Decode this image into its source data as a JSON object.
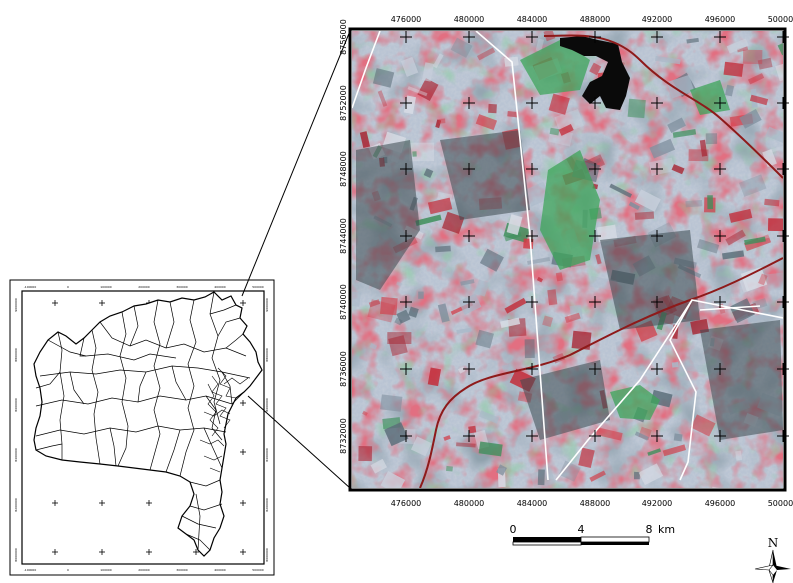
{
  "inset_map": {
    "x_ticks": [
      "-100000",
      "0",
      "100000",
      "200000",
      "300000",
      "400000",
      "500000"
    ],
    "y_ticks": [
      "9000000",
      "8800000",
      "8600000",
      "8400000",
      "8200000",
      "8000000"
    ]
  },
  "satellite_map": {
    "x_ticks_top": [
      "476000",
      "480000",
      "484000",
      "488000",
      "492000",
      "496000",
      "500000"
    ],
    "x_ticks_bottom": [
      "476000",
      "480000",
      "484000",
      "488000",
      "492000",
      "496000",
      "500000"
    ],
    "y_ticks": [
      "8756000",
      "8752000",
      "8748000",
      "8744000",
      "8740000",
      "8736000",
      "8732000"
    ]
  },
  "scale_bar": {
    "labels": [
      "0",
      "4",
      "8"
    ],
    "unit": "km"
  },
  "north_arrow": {
    "label": "N"
  },
  "colors": {
    "vegetation_red": "#c22a36",
    "bare_soil": "#b7c2d2",
    "water": "#0c0c0c",
    "river": "#8e1a1a",
    "road": "#ffffff",
    "forest_green": "#3fa257"
  }
}
